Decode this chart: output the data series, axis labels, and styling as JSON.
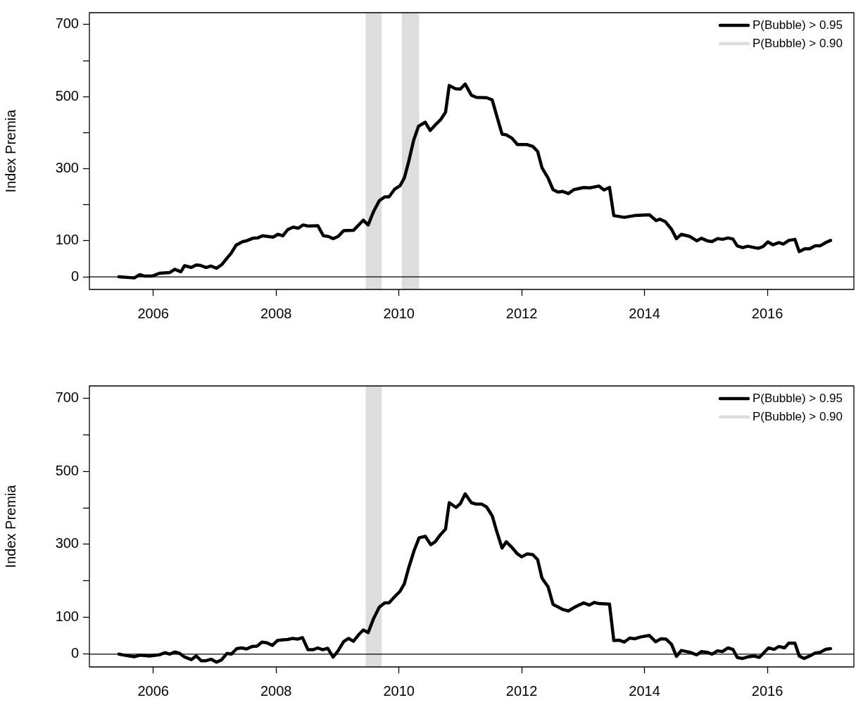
{
  "chart_data": [
    {
      "type": "line",
      "ylabel": "Index Premia",
      "xlim": [
        2004.96,
        2017.41
      ],
      "ylim": [
        -35,
        733
      ],
      "xticks": [
        2006,
        2008,
        2010,
        2012,
        2014,
        2016
      ],
      "yticks": [
        0,
        100,
        {
          "value": 200,
          "label": null
        },
        300,
        {
          "value": 400,
          "label": null
        },
        500,
        {
          "value": 600,
          "label": null
        },
        700
      ],
      "legend": "top right",
      "series": [
        {
          "color": "#000000",
          "x": [
            2005.44,
            2005.69,
            2005.78,
            2005.86,
            2005.98,
            2006.1,
            2006.27,
            2006.35,
            2006.45,
            2006.51,
            2006.62,
            2006.7,
            2006.76,
            2006.86,
            2006.94,
            2007.03,
            2007.11,
            2007.27,
            2007.35,
            2007.46,
            2007.52,
            2007.62,
            2007.7,
            2007.78,
            2007.95,
            2008.03,
            2008.11,
            2008.19,
            2008.28,
            2008.36,
            2008.44,
            2008.52,
            2008.68,
            2008.77,
            2008.85,
            2008.93,
            2009.01,
            2009.1,
            2009.26,
            2009.42,
            2009.5,
            2009.59,
            2009.68,
            2009.77,
            2009.84,
            2009.93,
            2010.02,
            2010.09,
            2010.16,
            2010.24,
            2010.32,
            2010.43,
            2010.51,
            2010.59,
            2010.68,
            2010.76,
            2010.82,
            2010.92,
            2011.0,
            2011.08,
            2011.18,
            2011.26,
            2011.43,
            2011.52,
            2011.6,
            2011.68,
            2011.75,
            2011.84,
            2011.93,
            2012.09,
            2012.18,
            2012.26,
            2012.33,
            2012.43,
            2012.51,
            2012.59,
            2012.67,
            2012.76,
            2012.85,
            2013.01,
            2013.11,
            2013.26,
            2013.34,
            2013.43,
            2013.5,
            2013.67,
            2013.84,
            2014.08,
            2014.19,
            2014.25,
            2014.34,
            2014.44,
            2014.52,
            2014.6,
            2014.74,
            2014.85,
            2014.93,
            2015.02,
            2015.1,
            2015.19,
            2015.27,
            2015.36,
            2015.44,
            2015.51,
            2015.6,
            2015.68,
            2015.85,
            2015.93,
            2016.01,
            2016.09,
            2016.19,
            2016.26,
            2016.35,
            2016.45,
            2016.52,
            2016.61,
            2016.69,
            2016.78,
            2016.86,
            2016.95,
            2017.03
          ],
          "values": [
            0,
            -3,
            6,
            2,
            2,
            10,
            12,
            21,
            14,
            31,
            26,
            33,
            32,
            26,
            30,
            24,
            33,
            66,
            88,
            98,
            100,
            107,
            108,
            114,
            110,
            118,
            114,
            131,
            138,
            135,
            144,
            141,
            142,
            114,
            112,
            106,
            112,
            128,
            129,
            157,
            144,
            182,
            211,
            222,
            222,
            243,
            253,
            275,
            320,
            379,
            418,
            429,
            406,
            421,
            436,
            457,
            531,
            522,
            521,
            535,
            504,
            498,
            497,
            491,
            443,
            396,
            394,
            385,
            367,
            367,
            362,
            348,
            303,
            274,
            242,
            235,
            237,
            231,
            242,
            248,
            247,
            252,
            241,
            248,
            170,
            165,
            170,
            172,
            156,
            160,
            153,
            132,
            106,
            118,
            112,
            100,
            107,
            100,
            98,
            106,
            104,
            108,
            105,
            86,
            81,
            85,
            79,
            84,
            97,
            89,
            95,
            91,
            101,
            104,
            70,
            78,
            78,
            86,
            86,
            95,
            101
          ]
        },
        {
          "name": "P(Bubble) > 0.95",
          "color": "#000000"
        },
        {
          "name": "P(Bubble) > 0.90",
          "color": "#dddddd"
        }
      ],
      "bands": [
        {
          "axis": "x",
          "from": 2009.46,
          "to": 2009.72,
          "color": "#dddddd"
        },
        {
          "axis": "x",
          "from": 2010.05,
          "to": 2010.33,
          "color": "#dddddd"
        }
      ],
      "ref_lines": [
        {
          "axis": "y",
          "value": 0,
          "color": "#000000"
        }
      ]
    },
    {
      "type": "line",
      "ylabel": "Index Premia",
      "xlim": [
        2004.96,
        2017.41
      ],
      "ylim": [
        -35,
        733
      ],
      "xticks": [
        2006,
        2008,
        2010,
        2012,
        2014,
        2016
      ],
      "yticks": [
        0,
        100,
        {
          "value": 200,
          "label": null
        },
        300,
        {
          "value": 400,
          "label": null
        },
        500,
        {
          "value": 600,
          "label": null
        },
        700
      ],
      "legend": "top right",
      "series": [
        {
          "color": "#000000",
          "x": [
            2005.44,
            2005.53,
            2005.69,
            2005.78,
            2005.94,
            2006.1,
            2006.19,
            2006.27,
            2006.35,
            2006.43,
            2006.51,
            2006.62,
            2006.7,
            2006.78,
            2006.86,
            2006.94,
            2007.03,
            2007.11,
            2007.2,
            2007.27,
            2007.36,
            2007.44,
            2007.52,
            2007.61,
            2007.69,
            2007.77,
            2007.85,
            2007.94,
            2008.02,
            2008.11,
            2008.19,
            2008.27,
            2008.35,
            2008.43,
            2008.52,
            2008.6,
            2008.68,
            2008.76,
            2008.84,
            2008.93,
            2009.01,
            2009.1,
            2009.18,
            2009.26,
            2009.34,
            2009.42,
            2009.5,
            2009.59,
            2009.68,
            2009.77,
            2009.84,
            2009.92,
            2010.02,
            2010.09,
            2010.16,
            2010.25,
            2010.33,
            2010.43,
            2010.52,
            2010.59,
            2010.67,
            2010.76,
            2010.82,
            2010.93,
            2011.0,
            2011.08,
            2011.18,
            2011.26,
            2011.35,
            2011.43,
            2011.52,
            2011.6,
            2011.68,
            2011.75,
            2011.86,
            2011.93,
            2012.0,
            2012.09,
            2012.18,
            2012.26,
            2012.33,
            2012.43,
            2012.51,
            2012.59,
            2012.67,
            2012.76,
            2012.85,
            2012.93,
            2013.01,
            2013.1,
            2013.18,
            2013.26,
            2013.43,
            2013.5,
            2013.59,
            2013.67,
            2013.76,
            2013.84,
            2013.94,
            2014.08,
            2014.18,
            2014.27,
            2014.35,
            2014.44,
            2014.52,
            2014.6,
            2014.74,
            2014.85,
            2014.93,
            2015.02,
            2015.1,
            2015.19,
            2015.27,
            2015.36,
            2015.44,
            2015.51,
            2015.59,
            2015.7,
            2015.78,
            2015.87,
            2015.95,
            2016.02,
            2016.11,
            2016.19,
            2016.28,
            2016.35,
            2016.45,
            2016.52,
            2016.6,
            2016.69,
            2016.78,
            2016.86,
            2016.95,
            2017.03
          ],
          "values": [
            0,
            -3,
            -7,
            -3,
            -5,
            -2,
            4,
            0,
            6,
            2,
            -8,
            -15,
            -5,
            -18,
            -18,
            -14,
            -22,
            -16,
            2,
            0,
            15,
            17,
            14,
            21,
            22,
            33,
            31,
            24,
            37,
            39,
            40,
            43,
            41,
            45,
            12,
            12,
            17,
            12,
            16,
            -8,
            9,
            34,
            43,
            35,
            52,
            66,
            59,
            98,
            128,
            140,
            140,
            155,
            172,
            193,
            236,
            284,
            318,
            322,
            299,
            307,
            325,
            342,
            414,
            401,
            411,
            438,
            414,
            410,
            410,
            402,
            378,
            332,
            290,
            307,
            288,
            274,
            266,
            274,
            272,
            258,
            208,
            184,
            136,
            129,
            122,
            118,
            127,
            134,
            140,
            134,
            141,
            138,
            137,
            37,
            38,
            33,
            44,
            42,
            47,
            51,
            34,
            42,
            41,
            27,
            -6,
            10,
            5,
            -2,
            7,
            5,
            0,
            9,
            7,
            17,
            13,
            -9,
            -12,
            -7,
            -5,
            -9,
            5,
            17,
            13,
            21,
            17,
            30,
            30,
            -5,
            -12,
            -5,
            3,
            5,
            13,
            15
          ]
        },
        {
          "name": "P(Bubble) > 0.95",
          "color": "#000000"
        },
        {
          "name": "P(Bubble) > 0.90",
          "color": "#dddddd"
        }
      ],
      "bands": [
        {
          "axis": "x",
          "from": 2009.46,
          "to": 2009.72,
          "color": "#dddddd"
        }
      ],
      "ref_lines": [
        {
          "axis": "y",
          "value": 0,
          "color": "#000000"
        }
      ]
    }
  ]
}
